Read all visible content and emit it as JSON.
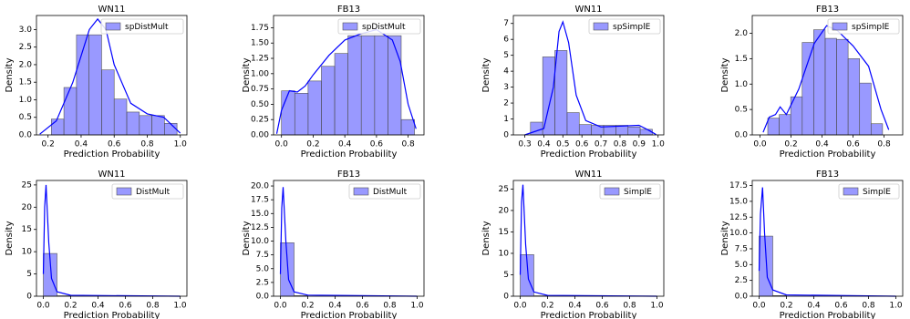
{
  "chart_data": [
    {
      "type": "histogram",
      "title": "WN11",
      "xlabel": "Prediction Probability",
      "ylabel": "Density",
      "legend": "spDistMult",
      "legend_position": "upper right",
      "color": "#0000ff",
      "bins": [
        0.22,
        0.296,
        0.372,
        0.448,
        0.524,
        0.6,
        0.676,
        0.752,
        0.828,
        0.904,
        0.98
      ],
      "values": [
        0.45,
        1.35,
        2.85,
        2.85,
        1.85,
        1.02,
        0.65,
        0.55,
        0.55,
        0.33
      ],
      "kde": {
        "x": [
          0.15,
          0.25,
          0.35,
          0.45,
          0.5,
          0.55,
          0.6,
          0.7,
          0.8,
          0.9,
          1.0
        ],
        "y": [
          0.02,
          0.4,
          1.5,
          3.0,
          3.3,
          3.0,
          2.0,
          0.9,
          0.6,
          0.5,
          0.05
        ]
      },
      "xlim": [
        0.13,
        1.04
      ],
      "xticks": [
        0.2,
        0.4,
        0.6,
        0.8,
        {
          "value": 1,
          "label": "1.0"
        }
      ],
      "ylim": [
        0,
        3.4
      ],
      "yticks": [
        {
          "value": 0,
          "label": "0.0"
        },
        0.5,
        {
          "value": 1,
          "label": "1.0"
        },
        1.5,
        {
          "value": 2,
          "label": "2.0"
        },
        2.5,
        {
          "value": 3,
          "label": "3.0"
        }
      ]
    },
    {
      "type": "histogram",
      "title": "FB13",
      "xlabel": "Prediction Probability",
      "ylabel": "Density",
      "legend": "spDistMult",
      "legend_position": "upper right",
      "color": "#0000ff",
      "bins": [
        0.0,
        0.084,
        0.168,
        0.252,
        0.336,
        0.42,
        0.504,
        0.588,
        0.672,
        0.756,
        0.84
      ],
      "values": [
        0.72,
        0.68,
        0.88,
        1.12,
        1.33,
        1.62,
        1.62,
        1.62,
        1.62,
        0.25
      ],
      "kde": {
        "x": [
          -0.03,
          0.0,
          0.05,
          0.1,
          0.15,
          0.2,
          0.3,
          0.4,
          0.5,
          0.6,
          0.7,
          0.75,
          0.8,
          0.85
        ],
        "y": [
          0.02,
          0.4,
          0.72,
          0.7,
          0.8,
          0.98,
          1.3,
          1.55,
          1.65,
          1.72,
          1.55,
          1.2,
          0.5,
          0.1
        ]
      },
      "xlim": [
        -0.05,
        0.9
      ],
      "xticks": [
        {
          "value": 0,
          "label": "0.0"
        },
        0.2,
        0.4,
        0.6,
        0.8
      ],
      "ylim": [
        0,
        1.95
      ],
      "yticks": [
        {
          "value": 0,
          "label": "0.00"
        },
        0.25,
        {
          "value": 0.5,
          "label": "0.50"
        },
        0.75,
        {
          "value": 1,
          "label": "1.00"
        },
        1.25,
        {
          "value": 1.5,
          "label": "1.50"
        },
        1.75
      ]
    },
    {
      "type": "histogram",
      "title": "WN11",
      "xlabel": "Prediction Probability",
      "ylabel": "Density",
      "legend": "spSimplE",
      "legend_position": "upper right",
      "color": "#0000ff",
      "bins": [
        0.33,
        0.394,
        0.458,
        0.522,
        0.586,
        0.65,
        0.714,
        0.778,
        0.842,
        0.906,
        0.97
      ],
      "values": [
        0.8,
        4.9,
        5.3,
        1.4,
        0.65,
        0.6,
        0.6,
        0.6,
        0.5,
        0.35
      ],
      "kde": {
        "x": [
          0.3,
          0.4,
          0.45,
          0.48,
          0.5,
          0.53,
          0.57,
          0.62,
          0.7,
          0.8,
          0.9,
          0.95,
          0.99
        ],
        "y": [
          0,
          0.4,
          3,
          6.5,
          7.1,
          5.8,
          2.5,
          0.9,
          0.5,
          0.55,
          0.6,
          0.3,
          0.02
        ]
      },
      "xlim": [
        0.24,
        1.03
      ],
      "xticks": [
        0.3,
        0.4,
        0.5,
        0.6,
        0.7,
        0.8,
        0.9,
        {
          "value": 1,
          "label": "1.0"
        }
      ],
      "ylim": [
        0,
        7.5
      ],
      "yticks": [
        0,
        1,
        2,
        3,
        4,
        5,
        6,
        7
      ]
    },
    {
      "type": "histogram",
      "title": "FB13",
      "xlabel": "Prediction Probability",
      "ylabel": "Density",
      "legend": "spSimplE",
      "legend_position": "upper right",
      "color": "#0000ff",
      "bins": [
        0.05,
        0.124,
        0.198,
        0.272,
        0.346,
        0.42,
        0.494,
        0.568,
        0.642,
        0.716,
        0.79
      ],
      "values": [
        0.33,
        0.4,
        0.75,
        1.82,
        2.07,
        1.9,
        1.88,
        1.5,
        1.02,
        0.22
      ],
      "kde": {
        "x": [
          0.02,
          0.06,
          0.1,
          0.13,
          0.17,
          0.25,
          0.35,
          0.43,
          0.5,
          0.6,
          0.7,
          0.78,
          0.83
        ],
        "y": [
          0.05,
          0.35,
          0.4,
          0.55,
          0.4,
          0.9,
          1.8,
          2.15,
          2.05,
          1.75,
          1.35,
          0.5,
          0.1
        ]
      },
      "xlim": [
        -0.05,
        0.92
      ],
      "xticks": [
        {
          "value": 0,
          "label": "0.0"
        },
        0.2,
        0.4,
        0.6,
        0.8
      ],
      "ylim": [
        0,
        2.35
      ],
      "yticks": [
        {
          "value": 0,
          "label": "0.0"
        },
        0.5,
        {
          "value": 1,
          "label": "1.0"
        },
        1.5,
        {
          "value": 2,
          "label": "2.0"
        }
      ]
    },
    {
      "type": "histogram",
      "title": "WN11",
      "xlabel": "Prediction Probability",
      "ylabel": "Density",
      "legend": "DistMult",
      "legend_position": "upper right",
      "color": "#0000ff",
      "bins": [
        0.0,
        0.1,
        0.2,
        0.3,
        0.4,
        0.5,
        0.6,
        0.7,
        0.8,
        0.9,
        1.0
      ],
      "values": [
        9.6,
        0.1,
        0,
        0,
        0,
        0,
        0,
        0,
        0,
        0
      ],
      "kde": {
        "x": [
          0.0,
          0.01,
          0.02,
          0.04,
          0.06,
          0.1,
          0.2,
          1.0
        ],
        "y": [
          5,
          20,
          25,
          12,
          4,
          1,
          0.2,
          0
        ]
      },
      "xlim": [
        -0.05,
        1.05
      ],
      "xticks": [
        {
          "value": 0,
          "label": "0.0"
        },
        0.2,
        0.4,
        0.6,
        0.8,
        {
          "value": 1,
          "label": "1.0"
        }
      ],
      "ylim": [
        0,
        26
      ],
      "yticks": [
        0,
        5,
        10,
        15,
        20,
        25
      ]
    },
    {
      "type": "histogram",
      "title": "FB13",
      "xlabel": "Prediction Probability",
      "ylabel": "Density",
      "legend": "DistMult",
      "legend_position": "upper right",
      "color": "#0000ff",
      "bins": [
        0.0,
        0.1,
        0.2,
        0.3,
        0.4,
        0.5,
        0.6,
        0.7,
        0.8,
        0.9,
        1.0
      ],
      "values": [
        9.7,
        0.1,
        0,
        0,
        0,
        0,
        0,
        0,
        0,
        0
      ],
      "kde": {
        "x": [
          0.0,
          0.01,
          0.02,
          0.04,
          0.06,
          0.1,
          0.2,
          1.0
        ],
        "y": [
          4,
          16,
          19.8,
          10,
          3,
          0.8,
          0.2,
          0
        ]
      },
      "xlim": [
        -0.05,
        1.05
      ],
      "xticks": [
        {
          "value": 0,
          "label": "0.0"
        },
        0.2,
        0.4,
        0.6,
        0.8,
        {
          "value": 1,
          "label": "1.0"
        }
      ],
      "ylim": [
        0,
        21
      ],
      "yticks": [
        {
          "value": 0,
          "label": "0.0"
        },
        2.5,
        {
          "value": 5,
          "label": "5.0"
        },
        7.5,
        {
          "value": 10,
          "label": "10.0"
        },
        12.5,
        {
          "value": 15,
          "label": "15.0"
        },
        17.5,
        {
          "value": 20,
          "label": "20.0"
        }
      ]
    },
    {
      "type": "histogram",
      "title": "WN11",
      "xlabel": "Prediction Probability",
      "ylabel": "Density",
      "legend": "SimplE",
      "legend_position": "upper right",
      "color": "#0000ff",
      "bins": [
        0.0,
        0.1,
        0.2,
        0.3,
        0.4,
        0.5,
        0.6,
        0.7,
        0.8,
        0.9,
        1.0
      ],
      "values": [
        9.7,
        0.1,
        0,
        0,
        0,
        0,
        0,
        0,
        0,
        0
      ],
      "kde": {
        "x": [
          0.0,
          0.01,
          0.02,
          0.04,
          0.06,
          0.1,
          0.2,
          1.0
        ],
        "y": [
          5,
          22,
          26,
          12,
          4,
          1,
          0.2,
          0
        ]
      },
      "xlim": [
        -0.05,
        1.05
      ],
      "xticks": [
        {
          "value": 0,
          "label": "0.0"
        },
        0.2,
        0.4,
        0.6,
        0.8,
        {
          "value": 1,
          "label": "1.0"
        }
      ],
      "ylim": [
        0,
        27
      ],
      "yticks": [
        0,
        5,
        10,
        15,
        20,
        25
      ]
    },
    {
      "type": "histogram",
      "title": "FB13",
      "xlabel": "Prediction Probability",
      "ylabel": "Density",
      "legend": "SimplE",
      "legend_position": "upper right",
      "color": "#0000ff",
      "bins": [
        0.0,
        0.1,
        0.2,
        0.3,
        0.4,
        0.5,
        0.6,
        0.7,
        0.8,
        0.9,
        1.0
      ],
      "values": [
        9.5,
        0.1,
        0,
        0,
        0,
        0,
        0,
        0,
        0,
        0
      ],
      "kde": {
        "x": [
          0.0,
          0.01,
          0.025,
          0.04,
          0.06,
          0.1,
          0.2,
          1.0
        ],
        "y": [
          4,
          13,
          17.2,
          10,
          3,
          1,
          0.2,
          0
        ]
      },
      "xlim": [
        -0.05,
        1.05
      ],
      "xticks": [
        {
          "value": 0,
          "label": "0.0"
        },
        0.2,
        0.4,
        0.6,
        0.8,
        {
          "value": 1,
          "label": "1.0"
        }
      ],
      "ylim": [
        0,
        18.3
      ],
      "yticks": [
        {
          "value": 0,
          "label": "0.0"
        },
        2.5,
        {
          "value": 5,
          "label": "5.0"
        },
        7.5,
        {
          "value": 10,
          "label": "10.0"
        },
        12.5,
        {
          "value": 15,
          "label": "15.0"
        },
        17.5
      ]
    }
  ]
}
